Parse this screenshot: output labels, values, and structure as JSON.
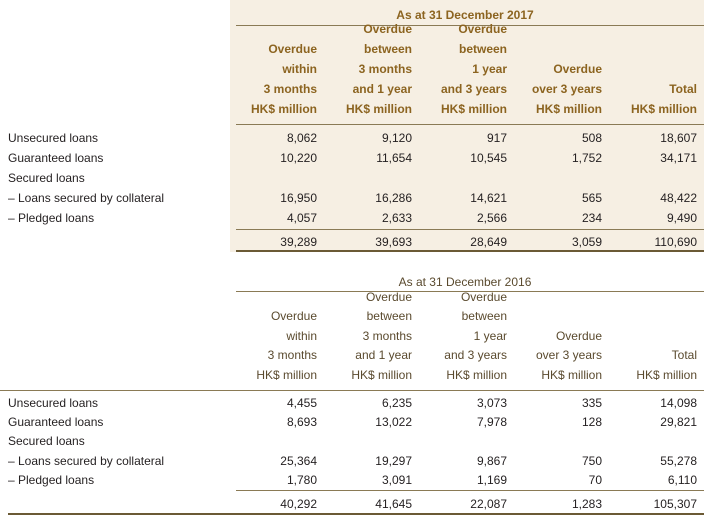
{
  "table_2017": {
    "title": "As at 31 December 2017",
    "columns": [
      {
        "lines": [
          "Overdue",
          "within",
          "3 months",
          "HK$ million"
        ]
      },
      {
        "lines": [
          "Overdue",
          "between",
          "3 months",
          "and 1 year",
          "HK$ million"
        ]
      },
      {
        "lines": [
          "Overdue",
          "between",
          "1 year",
          "and 3 years",
          "HK$ million"
        ]
      },
      {
        "lines": [
          "Overdue",
          "over 3 years",
          "HK$ million"
        ]
      },
      {
        "lines": [
          "Total",
          "HK$ million"
        ]
      }
    ],
    "rows": [
      {
        "label": "Unsecured loans",
        "values": [
          "8,062",
          "9,120",
          "917",
          "508",
          "18,607"
        ]
      },
      {
        "label": "Guaranteed loans",
        "values": [
          "10,220",
          "11,654",
          "10,545",
          "1,752",
          "34,171"
        ]
      },
      {
        "label": "Secured loans",
        "values": []
      },
      {
        "label": "– Loans secured by collateral",
        "values": [
          "16,950",
          "16,286",
          "14,621",
          "565",
          "48,422"
        ]
      },
      {
        "label": "– Pledged loans",
        "values": [
          "4,057",
          "2,633",
          "2,566",
          "234",
          "9,490"
        ]
      }
    ],
    "totals": [
      "39,289",
      "39,693",
      "28,649",
      "3,059",
      "110,690"
    ]
  },
  "table_2016": {
    "title": "As at 31 December 2016",
    "columns": [
      {
        "lines": [
          "Overdue",
          "within",
          "3 months",
          "HK$ million"
        ]
      },
      {
        "lines": [
          "Overdue",
          "between",
          "3 months",
          "and 1 year",
          "HK$ million"
        ]
      },
      {
        "lines": [
          "Overdue",
          "between",
          "1 year",
          "and 3 years",
          "HK$ million"
        ]
      },
      {
        "lines": [
          "Overdue",
          "over 3 years",
          "HK$ million"
        ]
      },
      {
        "lines": [
          "Total",
          "HK$ million"
        ]
      }
    ],
    "rows": [
      {
        "label": "Unsecured loans",
        "values": [
          "4,455",
          "6,235",
          "3,073",
          "335",
          "14,098"
        ]
      },
      {
        "label": "Guaranteed loans",
        "values": [
          "8,693",
          "13,022",
          "7,978",
          "128",
          "29,821"
        ]
      },
      {
        "label": "Secured loans",
        "values": []
      },
      {
        "label": "– Loans secured by collateral",
        "values": [
          "25,364",
          "19,297",
          "9,867",
          "750",
          "55,278"
        ]
      },
      {
        "label": "– Pledged loans",
        "values": [
          "1,780",
          "3,091",
          "1,169",
          "70",
          "6,110"
        ]
      }
    ],
    "totals": [
      "40,292",
      "41,645",
      "22,087",
      "1,283",
      "105,307"
    ]
  }
}
